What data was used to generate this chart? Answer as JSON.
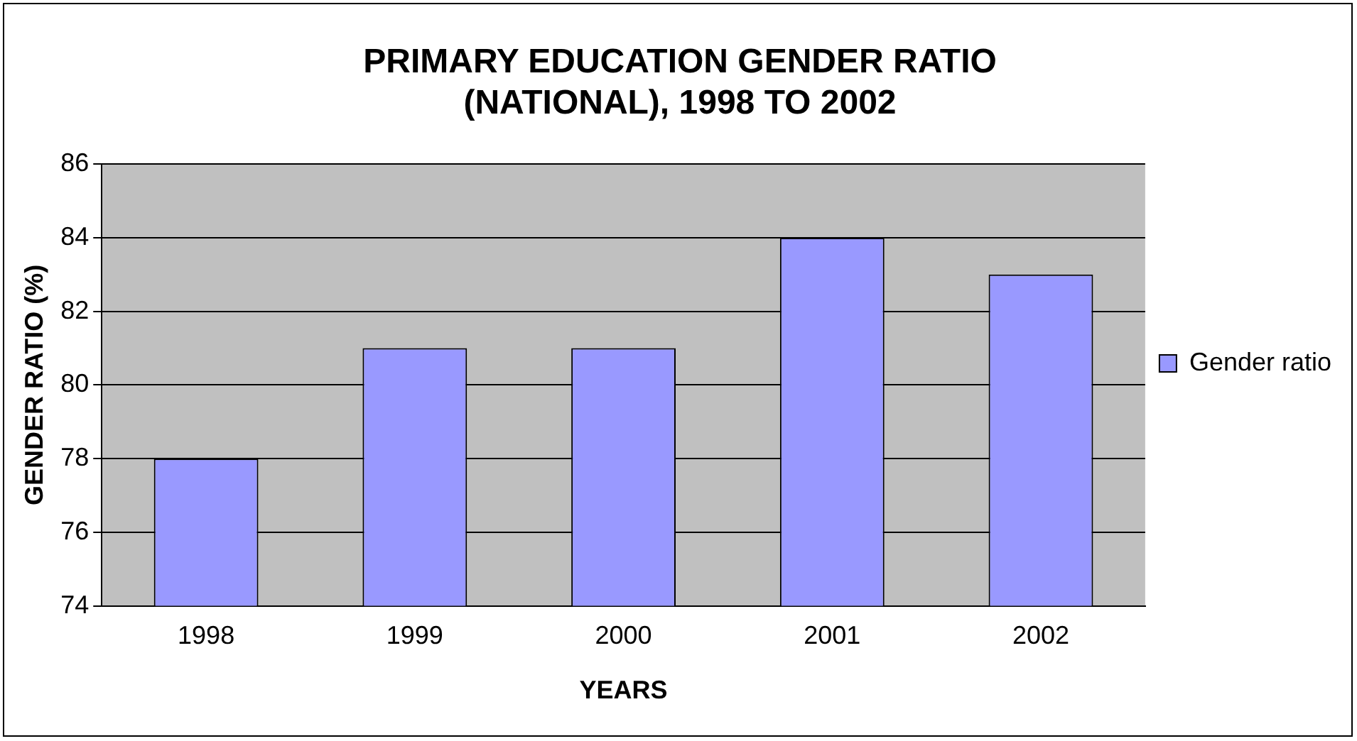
{
  "chart_data": {
    "type": "bar",
    "title": "PRIMARY EDUCATION GENDER RATIO (NATIONAL), 1998 TO 2002",
    "xlabel": "YEARS",
    "ylabel": "GENDER RATIO (%)",
    "categories": [
      "1998",
      "1999",
      "2000",
      "2001",
      "2002"
    ],
    "series": [
      {
        "name": "Gender ratio",
        "color": "#9999ff",
        "values": [
          78,
          81,
          81,
          84,
          83
        ]
      }
    ],
    "ylim": [
      74,
      86
    ],
    "yticks": [
      74,
      76,
      78,
      80,
      82,
      84,
      86
    ],
    "grid": "y",
    "legend": "right"
  }
}
